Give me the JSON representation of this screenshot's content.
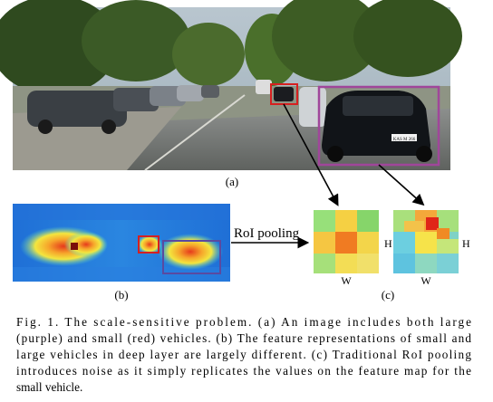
{
  "figure": {
    "label_a": "(a)",
    "label_b": "(b)",
    "label_c": "(c)",
    "roi_pooling_label": "RoI pooling",
    "axis_h_left": "H",
    "axis_w_left": "W",
    "axis_h_right": "H",
    "axis_w_right": "W",
    "license_plate": "KAS M 266",
    "colors": {
      "small_vehicle_box": "#d62020",
      "large_vehicle_box": "#a0469a",
      "feature_box_large": "#5a4aa0"
    }
  },
  "caption": {
    "lines": [
      "Fig.  1.    The scale-sensitive problem. (a) An image includes both large",
      "(purple) and small (red) vehicles. (b) The feature representations of small and",
      "large vehicles in deep layer are largely different. (c) Traditional RoI pooling",
      "introduces noise as it simply replicates the values on the feature map for the",
      "small vehicle."
    ]
  }
}
